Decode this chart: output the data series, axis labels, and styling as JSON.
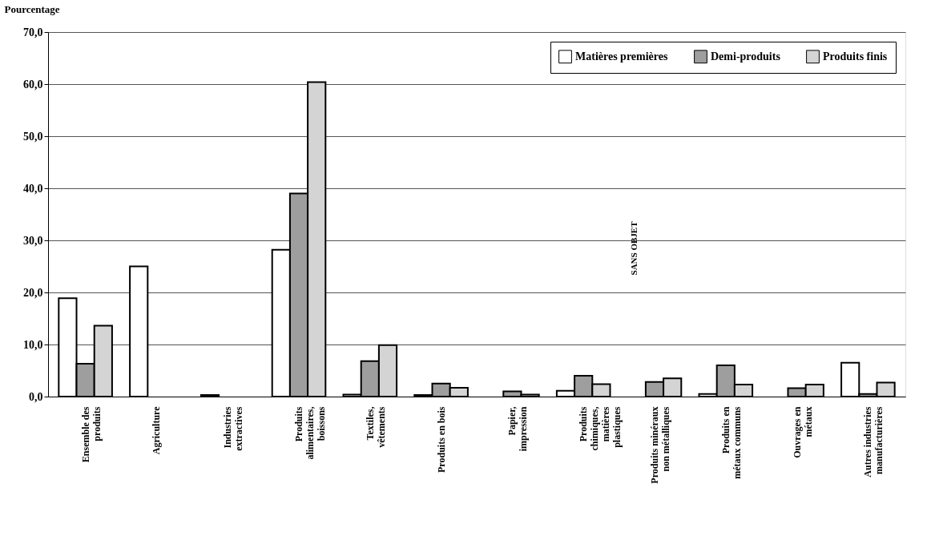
{
  "chart_data": {
    "type": "bar",
    "ylabel": "Pourcentage",
    "categories": [
      "Ensemble des produits",
      "Agriculture",
      "Industries extractives",
      "Produits alimentaires, boissons",
      "Textiles, vêtements",
      "Produits en bois",
      "Papier, impression",
      "Produits chimiques, matières plastiques",
      "Produits minéraux non métalliques",
      "Produits en métaux communs",
      "Ouvrages en métaux",
      "Autres industries manufacturières"
    ],
    "series": [
      {
        "name": "Matières premières",
        "color": "#ffffff",
        "values": [
          18.9,
          25.0,
          0.3,
          28.2,
          0.4,
          0.3,
          null,
          1.1,
          null,
          0.5,
          null,
          6.5
        ]
      },
      {
        "name": "Demi-produits",
        "color": "#9e9e9e",
        "values": [
          6.3,
          null,
          null,
          39.0,
          6.8,
          2.5,
          1.0,
          4.0,
          2.8,
          6.0,
          1.6,
          0.5
        ]
      },
      {
        "name": "Produits finis",
        "color": "#d4d4d4",
        "values": [
          13.6,
          null,
          null,
          60.4,
          9.9,
          1.7,
          0.4,
          2.4,
          3.5,
          2.3,
          2.3,
          2.7
        ]
      }
    ],
    "ylim": [
      0,
      70
    ],
    "yticks": [
      {
        "value": 0,
        "label": "0,0"
      },
      {
        "value": 10,
        "label": "10,0"
      },
      {
        "value": 20,
        "label": "20,0"
      },
      {
        "value": 30,
        "label": "30,0"
      },
      {
        "value": 40,
        "label": "40,0"
      },
      {
        "value": 50,
        "label": "50,0"
      },
      {
        "value": 60,
        "label": "60,0"
      },
      {
        "value": 70,
        "label": "70,0"
      }
    ],
    "grid": "y",
    "legend": "top right",
    "annotations": [
      "SANS OBJET"
    ]
  }
}
